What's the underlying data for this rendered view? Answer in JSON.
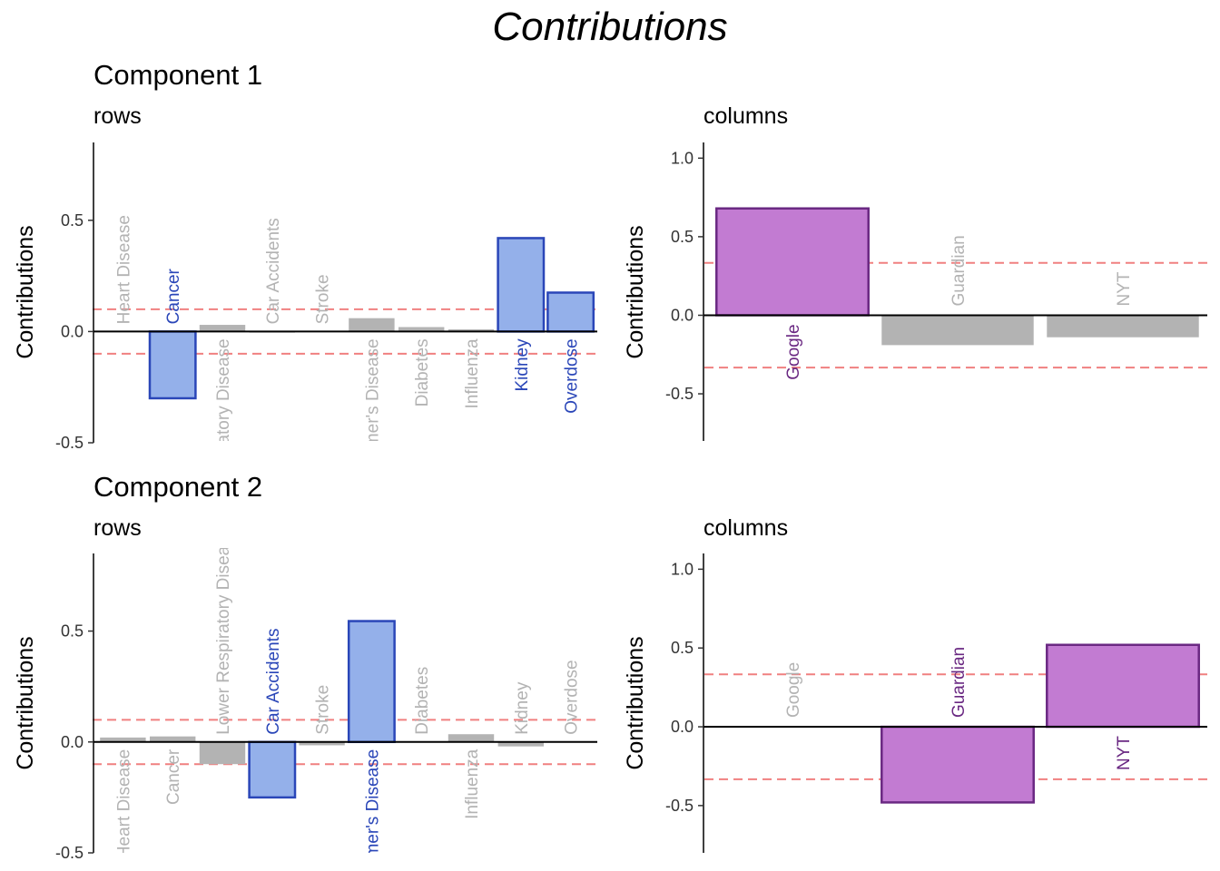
{
  "title": "Contributions",
  "components": [
    {
      "title": "Component 1"
    },
    {
      "title": "Component 2"
    }
  ],
  "colors": {
    "rows_highlight_fill": "#94b0ea",
    "rows_highlight_stroke": "#2a46b8",
    "cols_highlight_fill": "#c27bd2",
    "cols_highlight_stroke": "#6a2882",
    "neutral": "#b3b3b3",
    "threshold_line": "#f08080"
  },
  "chart_data": [
    {
      "type": "bar",
      "component": 1,
      "subtitle": "rows",
      "ylabel": "Contributions",
      "ylim": [
        -0.5,
        0.85
      ],
      "yticks": [
        -0.5,
        0.0,
        0.5
      ],
      "ytick_labels": [
        "-0.5",
        "0.0",
        "0.5"
      ],
      "threshold": 0.1,
      "categories": [
        "Heart Disease",
        "Cancer",
        "Lower Respiratory Disease",
        "Car Accidents",
        "Stroke",
        "Alzheimer's Disease",
        "Diabetes",
        "Influenza",
        "Kidney",
        "Overdose"
      ],
      "values": [
        0.0,
        -0.3,
        0.03,
        -0.005,
        0.0,
        0.06,
        0.02,
        0.01,
        0.42,
        0.175
      ],
      "highlighted": [
        false,
        true,
        false,
        false,
        false,
        false,
        false,
        false,
        true,
        true
      ]
    },
    {
      "type": "bar",
      "component": 1,
      "subtitle": "columns",
      "ylabel": "Contributions",
      "ylim": [
        -0.8,
        1.1
      ],
      "yticks": [
        -0.5,
        0.0,
        0.5,
        1.0
      ],
      "ytick_labels": [
        "-0.5",
        "0.0",
        "0.5",
        "1.0"
      ],
      "threshold": 0.333,
      "categories": [
        "Google",
        "Guardian",
        "NYT"
      ],
      "values": [
        0.68,
        -0.19,
        -0.14
      ],
      "highlighted": [
        true,
        false,
        false
      ]
    },
    {
      "type": "bar",
      "component": 2,
      "subtitle": "rows",
      "ylabel": "Contributions",
      "ylim": [
        -0.5,
        0.85
      ],
      "yticks": [
        -0.5,
        0.0,
        0.5
      ],
      "ytick_labels": [
        "-0.5",
        "0.0",
        "0.5"
      ],
      "threshold": 0.1,
      "categories": [
        "Heart Disease",
        "Cancer",
        "Lower Respiratory Disease",
        "Car Accidents",
        "Stroke",
        "Alzheimer's Disease",
        "Diabetes",
        "Influenza",
        "Kidney",
        "Overdose"
      ],
      "values": [
        0.02,
        0.025,
        -0.1,
        -0.25,
        -0.015,
        0.545,
        0.0,
        0.035,
        -0.02,
        0.0
      ],
      "highlighted": [
        false,
        false,
        false,
        true,
        false,
        true,
        false,
        false,
        false,
        false
      ]
    },
    {
      "type": "bar",
      "component": 2,
      "subtitle": "columns",
      "ylabel": "Contributions",
      "ylim": [
        -0.8,
        1.1
      ],
      "yticks": [
        -0.5,
        0.0,
        0.5,
        1.0
      ],
      "ytick_labels": [
        "-0.5",
        "0.0",
        "0.5",
        "1.0"
      ],
      "threshold": 0.333,
      "categories": [
        "Google",
        "Guardian",
        "NYT"
      ],
      "values": [
        0.0,
        -0.48,
        0.52
      ],
      "highlighted": [
        false,
        true,
        true
      ]
    }
  ]
}
